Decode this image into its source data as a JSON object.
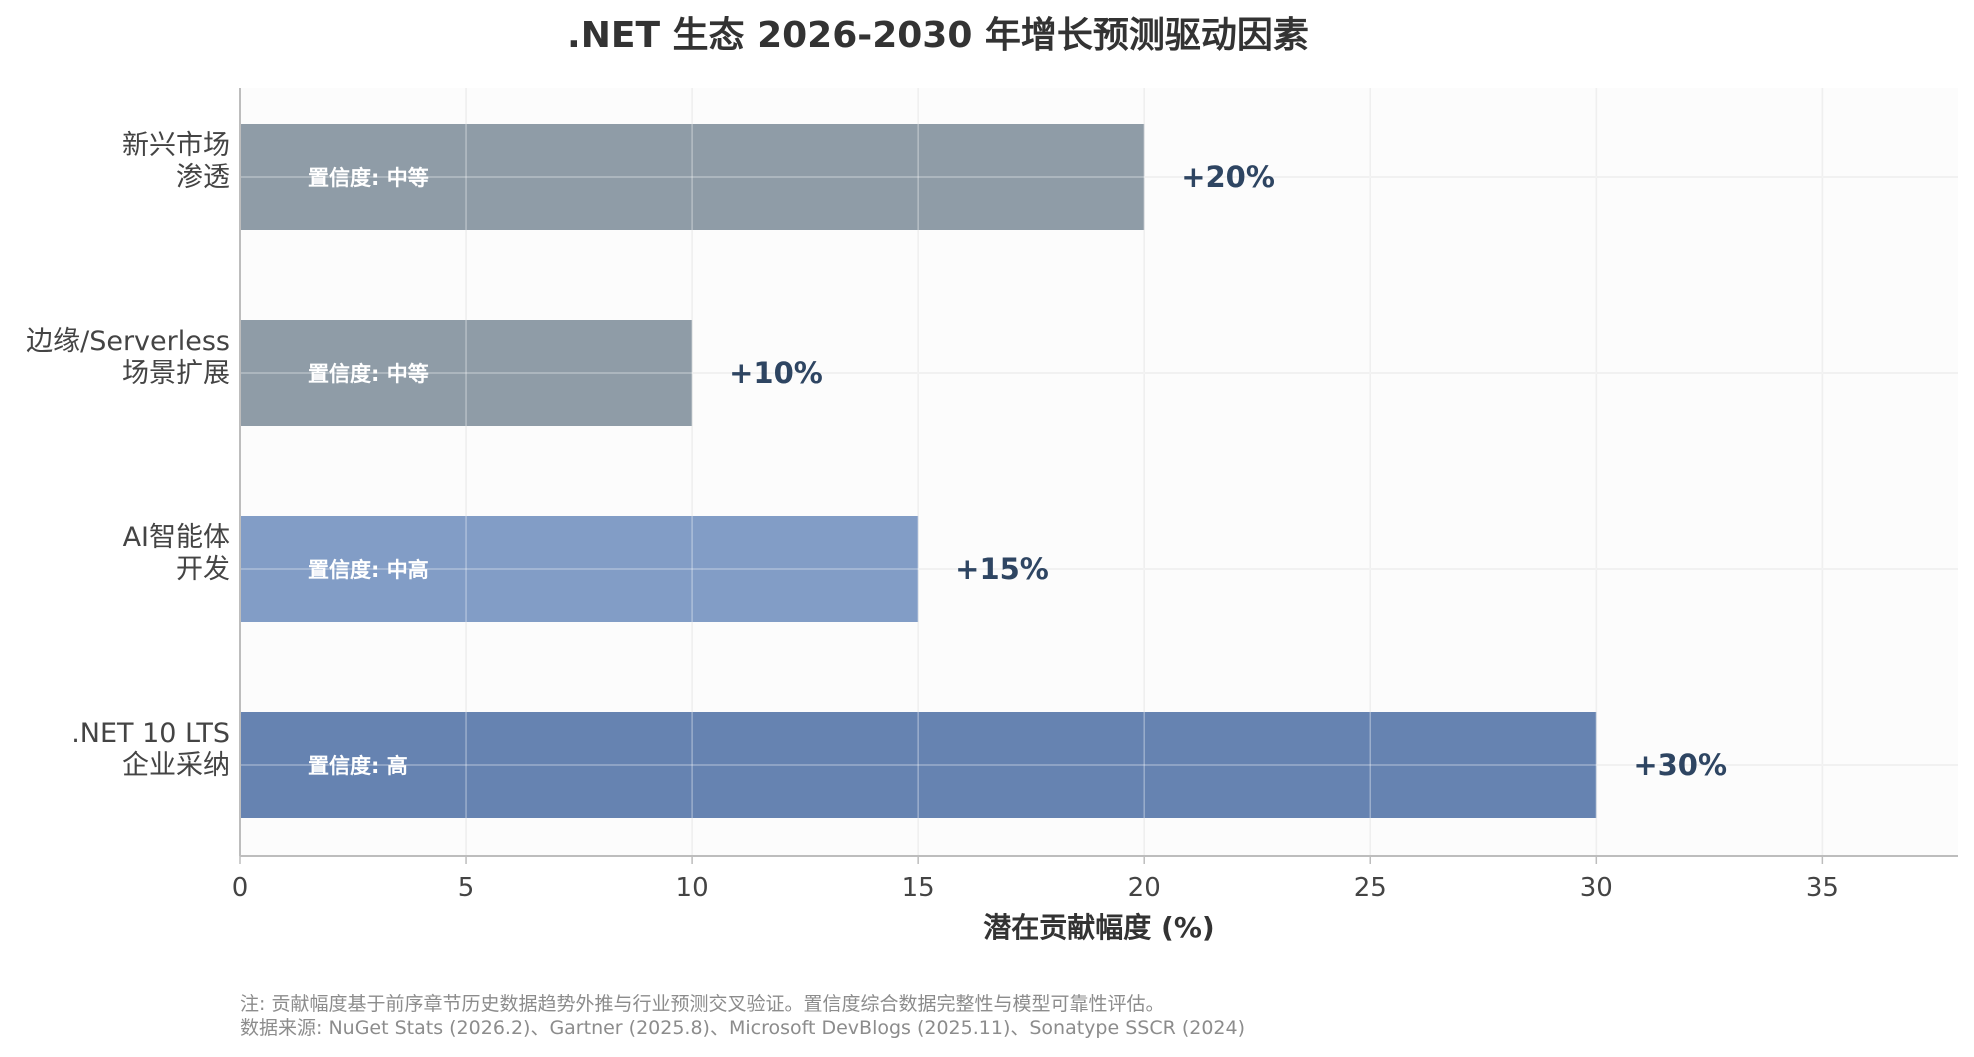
{
  "chart_data": {
    "type": "bar",
    "orientation": "horizontal",
    "title": ".NET 生态 2026-2030 年增长预测驱动因素",
    "xlabel": "潜在贡献幅度 (%)",
    "ylabel": "",
    "xlim": [
      0,
      38
    ],
    "xticks": [
      0,
      5,
      10,
      15,
      20,
      25,
      30,
      35
    ],
    "grid": true,
    "categories": [
      {
        "lines": [
          "新兴市场",
          "渗透"
        ],
        "value": 20,
        "value_label": "+20%",
        "confidence": "置信度: 中等",
        "color": "#8f9ca7"
      },
      {
        "lines": [
          "边缘/Serverless",
          "场景扩展"
        ],
        "value": 10,
        "value_label": "+10%",
        "confidence": "置信度: 中等",
        "color": "#8f9ca7"
      },
      {
        "lines": [
          "AI智能体",
          "开发"
        ],
        "value": 15,
        "value_label": "+15%",
        "confidence": "置信度: 中高",
        "color": "#829dc6"
      },
      {
        "lines": [
          ".NET 10 LTS",
          "企业采纳"
        ],
        "value": 30,
        "value_label": "+30%",
        "confidence": "置信度: 高",
        "color": "#6683b1"
      }
    ],
    "notes": [
      "注: 贡献幅度基于前序章节历史数据趋势外推与行业预测交叉验证。置信度综合数据完整性与模型可靠性评估。",
      "数据来源: NuGet Stats (2026.2)、Gartner (2025.8)、Microsoft DevBlogs (2025.11)、Sonatype SSCR (2024)"
    ]
  }
}
